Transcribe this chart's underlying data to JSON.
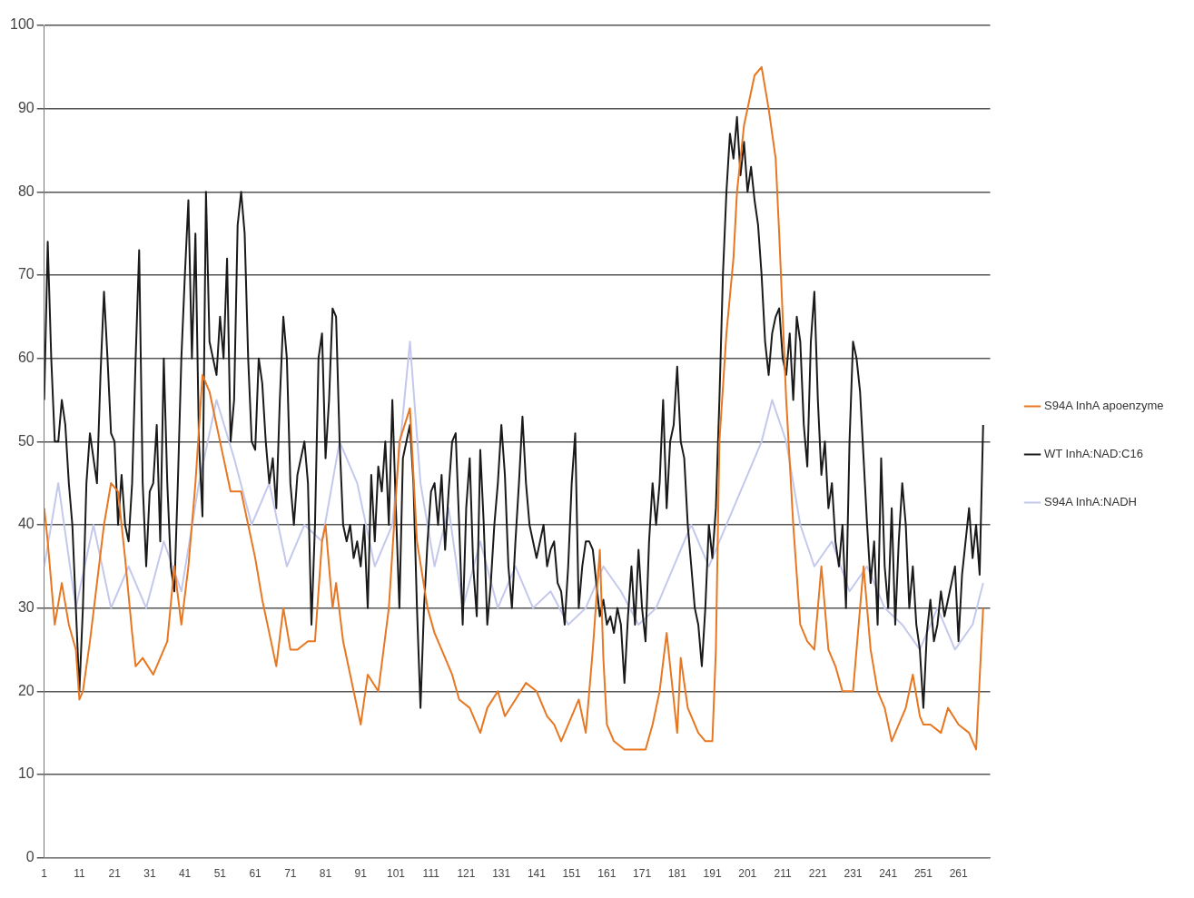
{
  "chart_data": {
    "type": "line",
    "xlim": [
      1,
      270
    ],
    "xticks": [
      1,
      11,
      21,
      31,
      41,
      51,
      61,
      71,
      81,
      91,
      101,
      111,
      121,
      131,
      141,
      151,
      161,
      171,
      181,
      191,
      201,
      211,
      221,
      231,
      241,
      251,
      261
    ],
    "ylim": [
      0,
      100
    ],
    "yticks": [
      0,
      10,
      20,
      30,
      40,
      50,
      60,
      70,
      80,
      90,
      100
    ],
    "grid": "y",
    "legend": "right",
    "marker": "none",
    "line_style": "solid",
    "series": [
      {
        "name": "S94A InhA apoenzyme",
        "color": "#e87722",
        "x": [
          1,
          2,
          4,
          6,
          8,
          10,
          11,
          12,
          14,
          16,
          18,
          20,
          22,
          24,
          26,
          27,
          29,
          32,
          34,
          36,
          38,
          40,
          42,
          44,
          46,
          48,
          50,
          52,
          54,
          57,
          59,
          61,
          63,
          65,
          67,
          69,
          71,
          73,
          76,
          78,
          80,
          81,
          83,
          84,
          86,
          89,
          91,
          93,
          96,
          99,
          102,
          105,
          107,
          110,
          112,
          114,
          117,
          119,
          122,
          125,
          127,
          130,
          132,
          135,
          138,
          141,
          144,
          146,
          148,
          151,
          153,
          155,
          157,
          159,
          160,
          161,
          163,
          166,
          169,
          172,
          174,
          176,
          178,
          180,
          181,
          182,
          184,
          187,
          189,
          191,
          192,
          193,
          195,
          197,
          198,
          200,
          203,
          205,
          207,
          209,
          210,
          212,
          214,
          216,
          218,
          220,
          222,
          224,
          226,
          228,
          231,
          232,
          234,
          236,
          238,
          240,
          242,
          244,
          246,
          248,
          250,
          251,
          253,
          256,
          258,
          261,
          264,
          266,
          268
        ],
        "values": [
          42,
          38,
          28,
          33,
          28,
          25,
          19,
          20,
          26,
          33,
          40,
          45,
          44,
          36,
          27,
          23,
          24,
          22,
          24,
          26,
          35,
          28,
          35,
          45,
          58,
          56,
          52,
          48,
          44,
          44,
          40,
          36,
          31,
          27,
          23,
          30,
          25,
          25,
          26,
          26,
          38,
          40,
          30,
          33,
          26,
          20,
          16,
          22,
          20,
          30,
          50,
          54,
          38,
          30,
          27,
          25,
          22,
          19,
          18,
          15,
          18,
          20,
          17,
          19,
          21,
          20,
          17,
          16,
          14,
          17,
          19,
          15,
          25,
          37,
          24,
          16,
          14,
          13,
          13,
          13,
          16,
          20,
          27,
          19,
          15,
          24,
          18,
          15,
          14,
          14,
          25,
          50,
          63,
          72,
          80,
          88,
          94,
          95,
          90,
          84,
          75,
          55,
          40,
          28,
          26,
          25,
          35,
          25,
          23,
          20,
          20,
          25,
          35,
          25,
          20,
          18,
          14,
          16,
          18,
          22,
          17,
          16,
          16,
          15,
          18,
          16,
          15,
          13,
          30
        ]
      },
      {
        "name": "WT InhA:NAD:C16",
        "color": "#1a1a1a",
        "x": [
          1,
          2,
          3,
          4,
          5,
          6,
          7,
          8,
          9,
          10,
          11,
          12,
          13,
          14,
          15,
          16,
          17,
          18,
          19,
          20,
          21,
          22,
          23,
          24,
          25,
          26,
          27,
          28,
          29,
          30,
          31,
          32,
          33,
          34,
          35,
          36,
          37,
          38,
          39,
          40,
          41,
          42,
          43,
          44,
          45,
          46,
          47,
          48,
          49,
          50,
          51,
          52,
          53,
          54,
          55,
          56,
          57,
          58,
          59,
          60,
          61,
          62,
          63,
          64,
          65,
          66,
          67,
          68,
          69,
          70,
          71,
          72,
          73,
          74,
          75,
          76,
          77,
          78,
          79,
          80,
          81,
          82,
          83,
          84,
          85,
          86,
          87,
          88,
          89,
          90,
          91,
          92,
          93,
          94,
          95,
          96,
          97,
          98,
          99,
          100,
          101,
          102,
          103,
          104,
          105,
          106,
          107,
          108,
          109,
          110,
          111,
          112,
          113,
          114,
          115,
          116,
          117,
          118,
          119,
          120,
          121,
          122,
          123,
          124,
          125,
          126,
          127,
          128,
          129,
          130,
          131,
          132,
          133,
          134,
          135,
          136,
          137,
          138,
          139,
          140,
          141,
          142,
          143,
          144,
          145,
          146,
          147,
          148,
          149,
          150,
          151,
          152,
          153,
          154,
          155,
          156,
          157,
          158,
          159,
          160,
          161,
          162,
          163,
          164,
          165,
          166,
          167,
          168,
          169,
          170,
          171,
          172,
          173,
          174,
          175,
          176,
          177,
          178,
          179,
          180,
          181,
          182,
          183,
          184,
          185,
          186,
          187,
          188,
          189,
          190,
          191,
          192,
          193,
          194,
          195,
          196,
          197,
          198,
          199,
          200,
          201,
          202,
          203,
          204,
          205,
          206,
          207,
          208,
          209,
          210,
          211,
          212,
          213,
          214,
          215,
          216,
          217,
          218,
          219,
          220,
          221,
          222,
          223,
          224,
          225,
          226,
          227,
          228,
          229,
          230,
          231,
          232,
          233,
          234,
          235,
          236,
          237,
          238,
          239,
          240,
          241,
          242,
          243,
          244,
          245,
          246,
          247,
          248,
          249,
          250,
          251,
          252,
          253,
          254,
          255,
          256,
          257,
          258,
          259,
          260,
          261,
          262,
          263,
          264,
          265,
          266,
          267,
          268
        ],
        "values": [
          55,
          74,
          60,
          50,
          50,
          55,
          52,
          45,
          40,
          30,
          20,
          30,
          45,
          51,
          48,
          45,
          58,
          68,
          60,
          51,
          50,
          40,
          46,
          40,
          38,
          45,
          60,
          73,
          45,
          35,
          44,
          45,
          52,
          38,
          60,
          45,
          35,
          32,
          45,
          60,
          70,
          79,
          60,
          75,
          50,
          41,
          80,
          62,
          60,
          58,
          65,
          60,
          72,
          50,
          55,
          76,
          80,
          75,
          60,
          50,
          49,
          60,
          57,
          50,
          45,
          48,
          42,
          55,
          65,
          60,
          45,
          40,
          46,
          48,
          50,
          45,
          28,
          40,
          60,
          63,
          48,
          55,
          66,
          65,
          50,
          40,
          38,
          40,
          36,
          38,
          35,
          40,
          30,
          46,
          38,
          47,
          44,
          50,
          40,
          55,
          42,
          30,
          48,
          50,
          52,
          45,
          30,
          18,
          30,
          38,
          44,
          45,
          40,
          46,
          37,
          44,
          50,
          51,
          40,
          28,
          42,
          48,
          35,
          29,
          49,
          40,
          28,
          33,
          40,
          45,
          52,
          46,
          35,
          30,
          38,
          45,
          53,
          45,
          40,
          38,
          36,
          38,
          40,
          35,
          37,
          38,
          33,
          32,
          28,
          35,
          45,
          51,
          30,
          35,
          38,
          38,
          37,
          33,
          29,
          31,
          28,
          29,
          27,
          30,
          28,
          21,
          29,
          35,
          28,
          37,
          30,
          26,
          38,
          45,
          40,
          45,
          55,
          42,
          50,
          52,
          59,
          50,
          48,
          40,
          35,
          30,
          28,
          23,
          30,
          40,
          36,
          42,
          55,
          70,
          80,
          87,
          84,
          89,
          82,
          86,
          80,
          83,
          79,
          76,
          70,
          62,
          58,
          63,
          65,
          66,
          60,
          58,
          63,
          55,
          65,
          62,
          52,
          47,
          62,
          68,
          55,
          46,
          50,
          42,
          45,
          38,
          35,
          40,
          30,
          50,
          62,
          60,
          56,
          48,
          40,
          33,
          38,
          28,
          48,
          35,
          30,
          42,
          28,
          38,
          45,
          40,
          30,
          35,
          28,
          25,
          18,
          27,
          31,
          26,
          28,
          32,
          29,
          31,
          33,
          35,
          26,
          34,
          38,
          42,
          36,
          40,
          34,
          52
        ]
      },
      {
        "name": "S94A InhA:NADH",
        "color": "#c4c8ec",
        "x": [
          1,
          5,
          10,
          15,
          20,
          25,
          30,
          35,
          40,
          45,
          50,
          55,
          60,
          65,
          70,
          75,
          80,
          85,
          90,
          95,
          100,
          105,
          108,
          112,
          116,
          120,
          125,
          130,
          135,
          140,
          145,
          150,
          155,
          160,
          165,
          170,
          175,
          180,
          185,
          190,
          195,
          200,
          205,
          208,
          212,
          216,
          220,
          225,
          230,
          235,
          240,
          245,
          250,
          255,
          260,
          265,
          268
        ],
        "values": [
          35,
          45,
          30,
          40,
          30,
          35,
          30,
          38,
          32,
          45,
          55,
          48,
          40,
          45,
          35,
          40,
          38,
          50,
          45,
          35,
          40,
          62,
          45,
          35,
          42,
          30,
          38,
          30,
          35,
          30,
          32,
          28,
          30,
          35,
          32,
          28,
          30,
          35,
          40,
          35,
          40,
          45,
          50,
          55,
          50,
          40,
          35,
          38,
          32,
          35,
          30,
          28,
          25,
          30,
          25,
          28,
          33
        ]
      }
    ]
  }
}
